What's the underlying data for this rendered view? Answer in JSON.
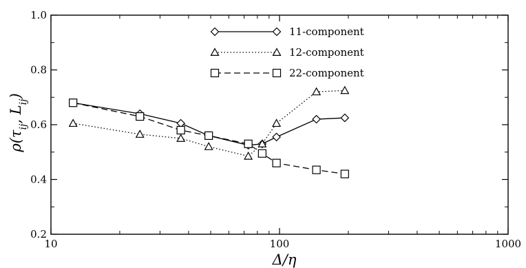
{
  "chart_data": {
    "type": "line",
    "xlabel": "Δ/η",
    "ylabel": "ρ(τ_ij, L_ij)",
    "xscale": "log",
    "xlim": [
      10,
      1000
    ],
    "ylim": [
      0.2,
      1.0
    ],
    "xticks": [
      10,
      100,
      1000
    ],
    "xtick_labels": [
      "10",
      "100",
      "1000"
    ],
    "yticks": [
      0.2,
      0.4,
      0.6,
      0.8,
      1.0
    ],
    "ytick_labels": [
      "0.2",
      "0.4",
      "0.6",
      "0.8",
      "1.0"
    ],
    "grid": false,
    "legend_position": "top-center",
    "x": [
      12.5,
      24.5,
      37,
      49,
      73,
      84,
      97,
      145,
      193
    ],
    "series": [
      {
        "name": "11-component",
        "marker": "diamond",
        "line_style": "solid",
        "values": [
          0.68,
          0.64,
          0.605,
          0.56,
          0.525,
          0.53,
          0.555,
          0.62,
          0.625
        ]
      },
      {
        "name": "12-component",
        "marker": "triangle",
        "line_style": "dotted",
        "values": [
          0.605,
          0.565,
          0.55,
          0.52,
          0.485,
          0.53,
          0.605,
          0.72,
          0.725
        ]
      },
      {
        "name": "22-component",
        "marker": "square",
        "line_style": "dashed",
        "values": [
          0.68,
          0.63,
          0.58,
          0.56,
          0.53,
          0.495,
          0.46,
          0.435,
          0.42
        ]
      }
    ]
  }
}
